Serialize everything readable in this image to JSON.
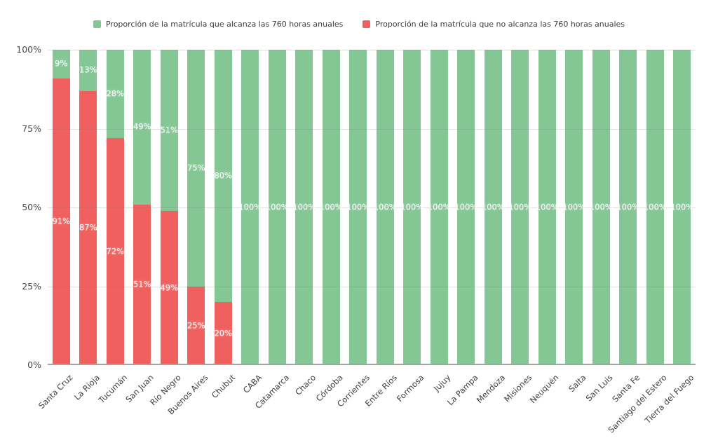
{
  "page": {
    "background": "#ffffff"
  },
  "legend": {
    "position": "top-center",
    "items": [
      {
        "label": "Proporción de la matrícula que alcanza las 760 horas anuales",
        "color": "#84c795"
      },
      {
        "label": "Proporción de la matrícula que no alcanza las 760 horas anuales",
        "color": "#f0605e"
      }
    ]
  },
  "chart_data": {
    "type": "bar",
    "stacked": true,
    "orientation": "vertical",
    "title": "",
    "xlabel": "",
    "ylabel": "",
    "categories": [
      "Santa Cruz",
      "La Rioja",
      "Tucumán",
      "San Juan",
      "Río Negro",
      "Buenos Aires",
      "Chubut",
      "CABA",
      "Catamarca",
      "Chaco",
      "Córdoba",
      "Corrientes",
      "Entre Ríos",
      "Formosa",
      "Jujuy",
      "La Pampa",
      "Mendoza",
      "Misiones",
      "Neuquén",
      "Salta",
      "San Luis",
      "Santa Fe",
      "Santiago del Estero",
      "Tierra del Fuego"
    ],
    "series": [
      {
        "name": "Proporción de la matrícula que alcanza las 760 horas anuales",
        "color": "#84c795",
        "values": [
          9,
          13,
          28,
          49,
          51,
          75,
          80,
          100,
          100,
          100,
          100,
          100,
          100,
          100,
          100,
          100,
          100,
          100,
          100,
          100,
          100,
          100,
          100,
          100
        ]
      },
      {
        "name": "Proporción de la matrícula que no alcanza las 760 horas anuales",
        "color": "#f0605e",
        "values": [
          91,
          87,
          72,
          51,
          49,
          25,
          20,
          0,
          0,
          0,
          0,
          0,
          0,
          0,
          0,
          0,
          0,
          0,
          0,
          0,
          0,
          0,
          0,
          0
        ]
      }
    ],
    "y_axis": {
      "min": 0,
      "max": 100,
      "ticks": [
        {
          "label": "0%",
          "value": 0
        },
        {
          "label": "25%",
          "value": 25
        },
        {
          "label": "50%",
          "value": 50
        },
        {
          "label": "75%",
          "value": 75
        },
        {
          "label": "100%",
          "value": 100
        }
      ]
    },
    "x_tick_rotation": -45,
    "grid": true,
    "data_label_format": "{value}%",
    "data_label_color": "#ffffff",
    "data_label_position": "segment-center",
    "hide_zero_labels": true,
    "axis_text_color": "#4a4a4a",
    "axis_line_color": "#a3a3a3"
  }
}
